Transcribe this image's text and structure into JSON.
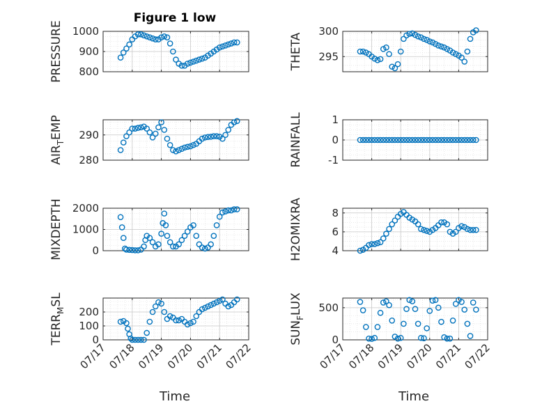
{
  "title": "Figure 1 low",
  "marker_color": "#0072BD",
  "x_tick_labels": [
    "07/17",
    "07/18",
    "07/19",
    "07/20",
    "07/21",
    "07/22"
  ],
  "x_label": "Time",
  "chart_data": [
    {
      "type": "scatter",
      "ylabel": "PRESSURE",
      "ylim": [
        800,
        1000
      ],
      "yticks": [
        "800",
        "900",
        "1000"
      ],
      "x": [
        17.6,
        17.7,
        17.8,
        17.9,
        18.0,
        18.1,
        18.2,
        18.3,
        18.4,
        18.5,
        18.6,
        18.7,
        18.8,
        18.9,
        19.0,
        19.1,
        19.2,
        19.3,
        19.4,
        19.5,
        19.6,
        19.7,
        19.8,
        19.9,
        20.0,
        20.1,
        20.2,
        20.3,
        20.4,
        20.5,
        20.6,
        20.7,
        20.8,
        20.9,
        21.0,
        21.1,
        21.2,
        21.3,
        21.4,
        21.5,
        21.6
      ],
      "y": [
        870,
        895,
        915,
        935,
        960,
        975,
        985,
        985,
        980,
        975,
        970,
        965,
        960,
        960,
        970,
        975,
        970,
        940,
        900,
        860,
        840,
        830,
        830,
        840,
        845,
        850,
        855,
        860,
        865,
        870,
        880,
        890,
        900,
        910,
        920,
        925,
        930,
        935,
        940,
        945,
        945
      ]
    },
    {
      "type": "scatter",
      "ylabel": "THETA",
      "ylim": [
        292,
        300
      ],
      "yticks": [
        "295",
        "300"
      ],
      "x": [
        17.6,
        17.7,
        17.8,
        17.9,
        18.0,
        18.1,
        18.2,
        18.3,
        18.4,
        18.5,
        18.6,
        18.7,
        18.8,
        18.9,
        19.0,
        19.1,
        19.2,
        19.3,
        19.4,
        19.5,
        19.6,
        19.7,
        19.8,
        19.9,
        20.0,
        20.1,
        20.2,
        20.3,
        20.4,
        20.5,
        20.6,
        20.7,
        20.8,
        20.9,
        21.0,
        21.1,
        21.2,
        21.3,
        21.4,
        21.5,
        21.6
      ],
      "y": [
        296,
        296,
        295.8,
        295.5,
        295,
        294.6,
        294.3,
        294.5,
        296.5,
        296.8,
        295.5,
        293,
        292.7,
        293.5,
        296,
        298.5,
        299.2,
        299.5,
        299.6,
        299.3,
        299,
        298.8,
        298.5,
        298.3,
        298,
        297.8,
        297.5,
        297.2,
        297,
        296.8,
        296.5,
        296.2,
        295.8,
        295.5,
        295.2,
        294.8,
        294,
        296,
        298.5,
        299.8,
        300.2
      ]
    },
    {
      "type": "scatter",
      "ylabel": "AIR_TEMP",
      "ylim": [
        280,
        296
      ],
      "yticks": [
        "280",
        "290"
      ],
      "x": [
        17.6,
        17.7,
        17.8,
        17.9,
        18.0,
        18.1,
        18.2,
        18.3,
        18.4,
        18.5,
        18.6,
        18.7,
        18.8,
        18.9,
        19.0,
        19.1,
        19.2,
        19.3,
        19.4,
        19.5,
        19.6,
        19.7,
        19.8,
        19.9,
        20.0,
        20.1,
        20.2,
        20.3,
        20.4,
        20.5,
        20.6,
        20.7,
        20.8,
        20.9,
        21.0,
        21.1,
        21.2,
        21.3,
        21.4,
        21.5,
        21.6
      ],
      "y": [
        284,
        287,
        289.5,
        291,
        292.5,
        292.5,
        292.8,
        293,
        293.3,
        292.5,
        291,
        289,
        290.5,
        293,
        295,
        292,
        288.5,
        286,
        284,
        283.5,
        284,
        284.5,
        285,
        285.3,
        285.5,
        286,
        286.5,
        287.5,
        288.5,
        289,
        289.2,
        289.3,
        289.5,
        289.5,
        289.3,
        288.5,
        290,
        292,
        294,
        295,
        295.5
      ]
    },
    {
      "type": "scatter",
      "ylabel": "RAINFALL",
      "ylim": [
        -1,
        1
      ],
      "yticks": [
        "-1",
        "0",
        "1"
      ],
      "x": [
        17.6,
        17.7,
        17.8,
        17.9,
        18.0,
        18.1,
        18.2,
        18.3,
        18.4,
        18.5,
        18.6,
        18.7,
        18.8,
        18.9,
        19.0,
        19.1,
        19.2,
        19.3,
        19.4,
        19.5,
        19.6,
        19.7,
        19.8,
        19.9,
        20.0,
        20.1,
        20.2,
        20.3,
        20.4,
        20.5,
        20.6,
        20.7,
        20.8,
        20.9,
        21.0,
        21.1,
        21.2,
        21.3,
        21.4,
        21.5,
        21.6
      ],
      "y": [
        0,
        0,
        0,
        0,
        0,
        0,
        0,
        0,
        0,
        0,
        0,
        0,
        0,
        0,
        0,
        0,
        0,
        0,
        0,
        0,
        0,
        0,
        0,
        0,
        0,
        0,
        0,
        0,
        0,
        0,
        0,
        0,
        0,
        0,
        0,
        0,
        0,
        0,
        0,
        0,
        0
      ]
    },
    {
      "type": "scatter",
      "ylabel": "MIXDEPTH",
      "ylim": [
        0,
        2000
      ],
      "yticks": [
        "0",
        "1000",
        "2000"
      ],
      "x": [
        17.6,
        17.65,
        17.7,
        17.75,
        17.8,
        17.9,
        18.0,
        18.1,
        18.2,
        18.3,
        18.4,
        18.45,
        18.5,
        18.6,
        18.7,
        18.8,
        18.9,
        19.0,
        19.05,
        19.1,
        19.15,
        19.2,
        19.3,
        19.4,
        19.5,
        19.6,
        19.7,
        19.8,
        19.9,
        20.0,
        20.1,
        20.2,
        20.3,
        20.4,
        20.5,
        20.6,
        20.7,
        20.8,
        20.9,
        21.0,
        21.1,
        21.2,
        21.3,
        21.4,
        21.5,
        21.6
      ],
      "y": [
        1580,
        1100,
        600,
        100,
        50,
        40,
        30,
        20,
        20,
        50,
        200,
        500,
        700,
        600,
        400,
        200,
        300,
        800,
        1300,
        1750,
        1200,
        700,
        400,
        200,
        200,
        300,
        500,
        700,
        900,
        1100,
        1200,
        700,
        300,
        150,
        100,
        150,
        300,
        700,
        1200,
        1600,
        1800,
        1850,
        1900,
        1900,
        1950,
        1950
      ]
    },
    {
      "type": "scatter",
      "ylabel": "H2OMIXRA",
      "ylim": [
        4,
        8.5
      ],
      "yticks": [
        "4",
        "6",
        "8"
      ],
      "x": [
        17.6,
        17.7,
        17.8,
        17.9,
        18.0,
        18.1,
        18.2,
        18.3,
        18.4,
        18.5,
        18.6,
        18.7,
        18.8,
        18.9,
        19.0,
        19.1,
        19.2,
        19.3,
        19.4,
        19.5,
        19.6,
        19.7,
        19.8,
        19.9,
        20.0,
        20.1,
        20.2,
        20.3,
        20.4,
        20.5,
        20.6,
        20.7,
        20.8,
        20.9,
        21.0,
        21.1,
        21.2,
        21.3,
        21.4,
        21.5,
        21.6
      ],
      "y": [
        4,
        4.1,
        4.3,
        4.6,
        4.7,
        4.7,
        4.8,
        4.9,
        5.3,
        5.8,
        6.3,
        6.8,
        7.2,
        7.6,
        7.9,
        8.1,
        7.8,
        7.5,
        7.3,
        7.1,
        6.8,
        6.3,
        6.2,
        6.1,
        6.0,
        6.2,
        6.4,
        6.7,
        7.0,
        7.0,
        6.8,
        6.0,
        5.8,
        6.0,
        6.4,
        6.6,
        6.5,
        6.3,
        6.2,
        6.2,
        6.2
      ]
    },
    {
      "type": "scatter",
      "ylabel": "TERR_MSL",
      "ylim": [
        0,
        300
      ],
      "yticks": [
        "0",
        "100",
        "200"
      ],
      "x": [
        17.6,
        17.7,
        17.8,
        17.85,
        17.9,
        17.95,
        18.0,
        18.1,
        18.2,
        18.3,
        18.4,
        18.5,
        18.6,
        18.7,
        18.8,
        18.9,
        19.0,
        19.1,
        19.2,
        19.3,
        19.4,
        19.5,
        19.6,
        19.7,
        19.8,
        19.9,
        20.0,
        20.1,
        20.2,
        20.3,
        20.4,
        20.5,
        20.6,
        20.7,
        20.8,
        20.9,
        21.0,
        21.1,
        21.2,
        21.3,
        21.4,
        21.5,
        21.6
      ],
      "y": [
        130,
        135,
        120,
        80,
        40,
        10,
        0,
        0,
        0,
        0,
        0,
        50,
        130,
        200,
        240,
        270,
        260,
        200,
        150,
        170,
        160,
        140,
        140,
        150,
        130,
        110,
        120,
        130,
        170,
        200,
        220,
        230,
        240,
        250,
        260,
        270,
        280,
        290,
        260,
        240,
        250,
        270,
        290
      ]
    },
    {
      "type": "scatter",
      "ylabel": "SUN_FLUX",
      "ylim": [
        0,
        650
      ],
      "yticks": [
        "0",
        "500"
      ],
      "x": [
        17.6,
        17.7,
        17.8,
        17.9,
        18.0,
        18.1,
        18.2,
        18.3,
        18.4,
        18.5,
        18.6,
        18.7,
        18.8,
        18.9,
        19.0,
        19.1,
        19.2,
        19.3,
        19.4,
        19.5,
        19.6,
        19.7,
        19.8,
        19.9,
        20.0,
        20.1,
        20.2,
        20.3,
        20.4,
        20.5,
        20.6,
        20.7,
        20.8,
        20.9,
        21.0,
        21.1,
        21.2,
        21.3,
        21.4,
        21.5,
        21.6
      ],
      "y": [
        590,
        460,
        200,
        20,
        15,
        30,
        200,
        420,
        580,
        600,
        540,
        300,
        50,
        20,
        30,
        250,
        480,
        620,
        600,
        480,
        250,
        30,
        25,
        180,
        450,
        610,
        620,
        500,
        280,
        40,
        20,
        20,
        300,
        560,
        620,
        590,
        470,
        250,
        60,
        580,
        470
      ]
    }
  ]
}
